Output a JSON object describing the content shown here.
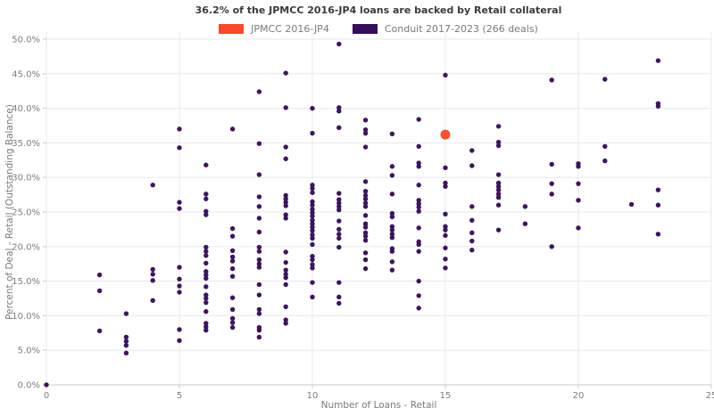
{
  "title": "36.2% of the JPMCC 2016-JP4 loans are backed by Retail collateral",
  "legend": {
    "items": [
      {
        "label": "JPMCC 2016-JP4",
        "color": "#f7492a"
      },
      {
        "label": "Conduit 2017-2023 (266 deals)",
        "color": "#350d59"
      }
    ]
  },
  "chart_data": {
    "type": "scatter",
    "title": "36.2% of the JPMCC 2016-JP4 loans are backed by Retail collateral",
    "xlabel": "Number of Loans - Retail",
    "ylabel": "Percent of Deal - Retail (Outstanding Balance)",
    "xlim": [
      0,
      25
    ],
    "ylim": [
      0,
      50
    ],
    "grid": true,
    "legend_position": "top",
    "x_ticks": {
      "values": [
        0,
        5,
        10,
        15,
        20,
        25
      ],
      "labels": [
        "0",
        "5",
        "10",
        "15",
        "20",
        "25"
      ]
    },
    "y_ticks": {
      "values": [
        0,
        5,
        10,
        15,
        20,
        25,
        30,
        35,
        40,
        45,
        50
      ],
      "labels": [
        "0.0%",
        "5.0%",
        "10.0%",
        "15.0%",
        "20.0%",
        "25.0%",
        "30.0%",
        "35.0%",
        "40.0%",
        "45.0%",
        "50.0%"
      ]
    },
    "series": [
      {
        "name": "Conduit 2017-2023 (266 deals)",
        "color": "#350d59",
        "marker_radius": 2.7,
        "points": [
          [
            0,
            0.0
          ],
          [
            2,
            15.9
          ],
          [
            2,
            13.6
          ],
          [
            2,
            7.8
          ],
          [
            3,
            10.3
          ],
          [
            3,
            6.9
          ],
          [
            3,
            6.3
          ],
          [
            3,
            5.7
          ],
          [
            3,
            4.6
          ],
          [
            4,
            28.9
          ],
          [
            4,
            16.7
          ],
          [
            4,
            16.0
          ],
          [
            4,
            15.1
          ],
          [
            4,
            12.2
          ],
          [
            5,
            37.0
          ],
          [
            5,
            34.3
          ],
          [
            5,
            26.4
          ],
          [
            5,
            25.5
          ],
          [
            5,
            17.0
          ],
          [
            5,
            15.3
          ],
          [
            5,
            14.3
          ],
          [
            5,
            13.4
          ],
          [
            5,
            8.0
          ],
          [
            5,
            6.4
          ],
          [
            6,
            31.8
          ],
          [
            6,
            27.6
          ],
          [
            6,
            26.9
          ],
          [
            6,
            25.1
          ],
          [
            6,
            24.6
          ],
          [
            6,
            19.9
          ],
          [
            6,
            19.3
          ],
          [
            6,
            18.7
          ],
          [
            6,
            17.6
          ],
          [
            6,
            16.4
          ],
          [
            6,
            15.9
          ],
          [
            6,
            15.4
          ],
          [
            6,
            14.2
          ],
          [
            6,
            13.0
          ],
          [
            6,
            12.5
          ],
          [
            6,
            11.9
          ],
          [
            6,
            10.6
          ],
          [
            6,
            8.9
          ],
          [
            6,
            8.4
          ],
          [
            6,
            7.9
          ],
          [
            7,
            37.0
          ],
          [
            7,
            22.6
          ],
          [
            7,
            21.5
          ],
          [
            7,
            19.4
          ],
          [
            7,
            18.5
          ],
          [
            7,
            17.9
          ],
          [
            7,
            16.8
          ],
          [
            7,
            15.7
          ],
          [
            7,
            12.6
          ],
          [
            7,
            10.9
          ],
          [
            7,
            9.6
          ],
          [
            7,
            9.0
          ],
          [
            7,
            8.3
          ],
          [
            8,
            42.4
          ],
          [
            8,
            34.9
          ],
          [
            8,
            30.4
          ],
          [
            8,
            27.2
          ],
          [
            8,
            25.8
          ],
          [
            8,
            24.1
          ],
          [
            8,
            22.1
          ],
          [
            8,
            19.9
          ],
          [
            8,
            19.3
          ],
          [
            8,
            18.1
          ],
          [
            8,
            17.5
          ],
          [
            8,
            17.0
          ],
          [
            8,
            14.5
          ],
          [
            8,
            13.0
          ],
          [
            8,
            10.9
          ],
          [
            8,
            10.3
          ],
          [
            8,
            8.3
          ],
          [
            8,
            7.9
          ],
          [
            8,
            6.9
          ],
          [
            9,
            45.1
          ],
          [
            9,
            40.1
          ],
          [
            9,
            34.4
          ],
          [
            9,
            32.7
          ],
          [
            9,
            27.4
          ],
          [
            9,
            26.9
          ],
          [
            9,
            26.4
          ],
          [
            9,
            25.9
          ],
          [
            9,
            24.6
          ],
          [
            9,
            24.1
          ],
          [
            9,
            19.2
          ],
          [
            9,
            17.7
          ],
          [
            9,
            16.6
          ],
          [
            9,
            16.0
          ],
          [
            9,
            15.5
          ],
          [
            9,
            14.5
          ],
          [
            9,
            11.3
          ],
          [
            9,
            9.4
          ],
          [
            9,
            8.9
          ],
          [
            10,
            40.0
          ],
          [
            10,
            36.4
          ],
          [
            10,
            28.9
          ],
          [
            10,
            28.4
          ],
          [
            10,
            27.8
          ],
          [
            10,
            26.5
          ],
          [
            10,
            26.0
          ],
          [
            10,
            25.4
          ],
          [
            10,
            24.9
          ],
          [
            10,
            24.4
          ],
          [
            10,
            23.8
          ],
          [
            10,
            23.3
          ],
          [
            10,
            22.8
          ],
          [
            10,
            22.3
          ],
          [
            10,
            21.7
          ],
          [
            10,
            21.2
          ],
          [
            10,
            20.3
          ],
          [
            10,
            18.6
          ],
          [
            10,
            18.1
          ],
          [
            10,
            17.4
          ],
          [
            10,
            16.9
          ],
          [
            10,
            14.8
          ],
          [
            10,
            12.7
          ],
          [
            11,
            49.3
          ],
          [
            11,
            40.1
          ],
          [
            11,
            39.6
          ],
          [
            11,
            37.2
          ],
          [
            11,
            27.7
          ],
          [
            11,
            26.8
          ],
          [
            11,
            26.3
          ],
          [
            11,
            25.8
          ],
          [
            11,
            25.3
          ],
          [
            11,
            23.7
          ],
          [
            11,
            22.5
          ],
          [
            11,
            21.8
          ],
          [
            11,
            21.2
          ],
          [
            11,
            19.9
          ],
          [
            11,
            14.8
          ],
          [
            11,
            12.7
          ],
          [
            11,
            11.8
          ],
          [
            12,
            38.3
          ],
          [
            12,
            36.9
          ],
          [
            12,
            36.4
          ],
          [
            12,
            34.4
          ],
          [
            12,
            29.4
          ],
          [
            12,
            28.0
          ],
          [
            12,
            27.4
          ],
          [
            12,
            26.9
          ],
          [
            12,
            26.3
          ],
          [
            12,
            25.8
          ],
          [
            12,
            24.5
          ],
          [
            12,
            23.3
          ],
          [
            12,
            22.8
          ],
          [
            12,
            22.0
          ],
          [
            12,
            21.5
          ],
          [
            12,
            20.9
          ],
          [
            12,
            19.1
          ],
          [
            12,
            18.1
          ],
          [
            12,
            16.8
          ],
          [
            13,
            36.3
          ],
          [
            13,
            31.6
          ],
          [
            13,
            30.3
          ],
          [
            13,
            27.6
          ],
          [
            13,
            24.8
          ],
          [
            13,
            24.3
          ],
          [
            13,
            22.9
          ],
          [
            13,
            22.4
          ],
          [
            13,
            21.8
          ],
          [
            13,
            21.3
          ],
          [
            13,
            19.7
          ],
          [
            13,
            19.3
          ],
          [
            13,
            17.8
          ],
          [
            13,
            16.6
          ],
          [
            14,
            38.4
          ],
          [
            14,
            34.5
          ],
          [
            14,
            32.1
          ],
          [
            14,
            31.6
          ],
          [
            14,
            28.9
          ],
          [
            14,
            26.7
          ],
          [
            14,
            26.2
          ],
          [
            14,
            25.7
          ],
          [
            14,
            25.1
          ],
          [
            14,
            22.7
          ],
          [
            14,
            20.7
          ],
          [
            14,
            20.3
          ],
          [
            14,
            19.3
          ],
          [
            14,
            15.0
          ],
          [
            14,
            12.9
          ],
          [
            14,
            11.1
          ],
          [
            15,
            44.8
          ],
          [
            15,
            31.4
          ],
          [
            15,
            29.2
          ],
          [
            15,
            28.7
          ],
          [
            15,
            24.7
          ],
          [
            15,
            22.9
          ],
          [
            15,
            22.4
          ],
          [
            15,
            21.6
          ],
          [
            15,
            19.8
          ],
          [
            15,
            18.2
          ],
          [
            15,
            16.9
          ],
          [
            16,
            33.9
          ],
          [
            16,
            31.7
          ],
          [
            16,
            25.8
          ],
          [
            16,
            23.8
          ],
          [
            16,
            22.0
          ],
          [
            16,
            20.8
          ],
          [
            16,
            19.5
          ],
          [
            17,
            37.4
          ],
          [
            17,
            35.1
          ],
          [
            17,
            34.6
          ],
          [
            17,
            30.4
          ],
          [
            17,
            29.2
          ],
          [
            17,
            28.7
          ],
          [
            17,
            28.2
          ],
          [
            17,
            27.6
          ],
          [
            17,
            27.1
          ],
          [
            17,
            26.0
          ],
          [
            17,
            22.4
          ],
          [
            18,
            25.8
          ],
          [
            18,
            23.3
          ],
          [
            19,
            44.1
          ],
          [
            19,
            31.9
          ],
          [
            19,
            29.1
          ],
          [
            19,
            27.6
          ],
          [
            19,
            20.0
          ],
          [
            20,
            32.0
          ],
          [
            20,
            31.6
          ],
          [
            20,
            29.1
          ],
          [
            20,
            26.7
          ],
          [
            20,
            22.7
          ],
          [
            21,
            44.2
          ],
          [
            21,
            34.5
          ],
          [
            21,
            32.4
          ],
          [
            22,
            26.1
          ],
          [
            23,
            46.9
          ],
          [
            23,
            40.7
          ],
          [
            23,
            40.3
          ],
          [
            23,
            28.2
          ],
          [
            23,
            26.0
          ],
          [
            23,
            21.8
          ]
        ]
      },
      {
        "name": "JPMCC 2016-JP4",
        "color": "#f7492a",
        "marker_radius": 5.5,
        "points": [
          [
            15,
            36.2
          ]
        ]
      }
    ],
    "colors": {
      "grid": "#e8e8e8",
      "axis_line": "#c8c8c8",
      "tick_label": "#7d7d7d",
      "axis_label": "#7a7a7a",
      "title": "#3b3b3b"
    }
  }
}
